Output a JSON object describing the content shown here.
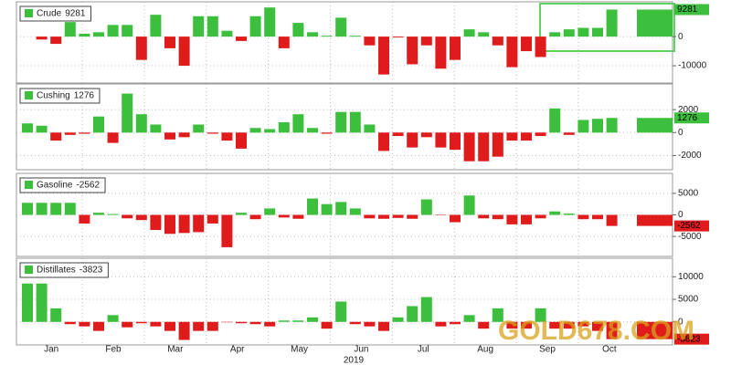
{
  "chart_data": [
    {
      "type": "bar",
      "series": [
        {
          "name": "Crude",
          "values": [
            0,
            -1000,
            -2500,
            5000,
            1000,
            1500,
            4000,
            4000,
            -8000,
            7500,
            -4000,
            -10000,
            7000,
            7000,
            2000,
            -1500,
            7000,
            10000,
            -4000,
            4700,
            1500,
            300,
            6500,
            300,
            -3000,
            -13000,
            -300,
            -9500,
            -3000,
            -11000,
            -8000,
            2500,
            1500,
            -3000,
            -10500,
            -5000,
            -7000,
            1500,
            2500,
            3000,
            3000,
            9281
          ]
        }
      ],
      "ylim": [
        -15000,
        11000
      ],
      "yticks": [
        -10000,
        0
      ],
      "grid": true,
      "positive_color": "#3cbf3c",
      "negative_color": "#e01b1b"
    },
    {
      "type": "bar",
      "series": [
        {
          "name": "Cushing",
          "values": [
            800,
            600,
            -700,
            -200,
            -100,
            1400,
            -900,
            3400,
            1600,
            700,
            -600,
            -400,
            700,
            -100,
            -700,
            -1400,
            400,
            300,
            900,
            1600,
            400,
            -100,
            1800,
            1800,
            700,
            -1600,
            -300,
            -1300,
            -400,
            -1300,
            -1500,
            -2500,
            -2500,
            -2100,
            -700,
            -700,
            -300,
            2100,
            -200,
            1100,
            1200,
            1276
          ]
        }
      ],
      "ylim": [
        -3000,
        4000
      ],
      "yticks": [
        -2000,
        0,
        2000
      ],
      "grid": true,
      "positive_color": "#3cbf3c",
      "negative_color": "#e01b1b"
    },
    {
      "type": "bar",
      "series": [
        {
          "name": "Gasoline",
          "values": [
            2800,
            2800,
            2800,
            2800,
            -2000,
            500,
            200,
            -800,
            -1200,
            -3500,
            -4400,
            -4200,
            -4000,
            -2000,
            -7500,
            500,
            -1000,
            1500,
            -600,
            -900,
            3800,
            2500,
            3000,
            1500,
            -800,
            -900,
            -700,
            -900,
            3600,
            -100,
            -1700,
            4500,
            -800,
            -1000,
            -2200,
            -2200,
            -800,
            800,
            300,
            -1000,
            -1000,
            -2562
          ]
        }
      ],
      "ylim": [
        -9000,
        9000
      ],
      "yticks": [
        -5000,
        0,
        5000
      ],
      "grid": true,
      "positive_color": "#3cbf3c",
      "negative_color": "#e01b1b"
    },
    {
      "type": "bar",
      "series": [
        {
          "name": "Distillates",
          "values": [
            8500,
            8500,
            3000,
            -500,
            -1000,
            -2000,
            1500,
            -1200,
            -300,
            -1000,
            -2000,
            -4000,
            -2000,
            -2000,
            -100,
            -300,
            -500,
            -1000,
            300,
            300,
            1000,
            -1500,
            4500,
            -500,
            -1000,
            -2000,
            1000,
            3500,
            5500,
            -1000,
            -500,
            1500,
            -1500,
            3000,
            -1500,
            -1500,
            3000,
            -1500,
            -1500,
            -1000,
            -2000,
            -3823
          ]
        }
      ],
      "ylim": [
        -4500,
        13500
      ],
      "yticks": [
        0,
        5000,
        10000
      ],
      "grid": true,
      "positive_color": "#3cbf3c",
      "negative_color": "#e01b1b",
      "x_labels": [
        "Jan",
        "Feb",
        "Mar",
        "Apr",
        "May",
        "Jun",
        "Jul",
        "Aug",
        "Sep",
        "Oct"
      ],
      "x_label": "2019",
      "watermark": "GOLD678.COM"
    }
  ]
}
